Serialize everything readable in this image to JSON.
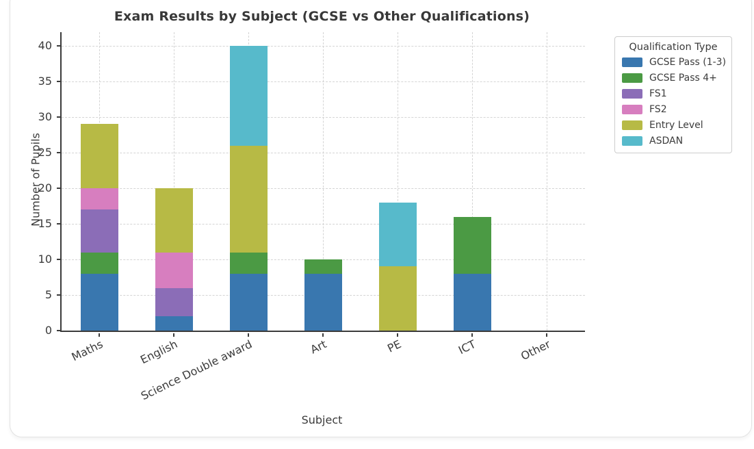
{
  "chart_data": {
    "type": "bar",
    "stacked": true,
    "title": "Exam Results by Subject (GCSE vs Other Qualifications)",
    "xlabel": "Subject",
    "ylabel": "Number of Pupils",
    "categories": [
      "Maths",
      "English",
      "Science Double award",
      "Art",
      "PE",
      "ICT",
      "Other"
    ],
    "series": [
      {
        "name": "GCSE Pass (1-3)",
        "color": "#3977af",
        "values": [
          8,
          2,
          8,
          8,
          0,
          8,
          0
        ]
      },
      {
        "name": "GCSE Pass 4+",
        "color": "#4b9a44",
        "values": [
          3,
          0,
          3,
          2,
          0,
          8,
          0
        ]
      },
      {
        "name": "FS1",
        "color": "#8b6db7",
        "values": [
          6,
          4,
          0,
          0,
          0,
          0,
          0
        ]
      },
      {
        "name": "FS2",
        "color": "#d77ebf",
        "values": [
          3,
          5,
          0,
          0,
          0,
          0,
          0
        ]
      },
      {
        "name": "Entry Level",
        "color": "#b7ba45",
        "values": [
          9,
          9,
          15,
          0,
          9,
          0,
          0
        ]
      },
      {
        "name": "ASDAN",
        "color": "#57bacb",
        "values": [
          0,
          0,
          14,
          0,
          9,
          0,
          0
        ]
      }
    ],
    "stack_totals": [
      29,
      20,
      40,
      10,
      18,
      16,
      0
    ],
    "ylim": [
      0,
      42
    ],
    "yticks": [
      0,
      5,
      10,
      15,
      20,
      25,
      30,
      35,
      40
    ],
    "legend_title": "Qualification Type",
    "legend_position": "outside upper right",
    "grid": "dashed horizontal and vertical gridlines",
    "colors": {
      "axis": "#3b3b3b",
      "gridline": "#d4d4d4",
      "card_border": "#e2e2e2",
      "legend_border": "#cccccc",
      "text": "#3b3b3b"
    }
  }
}
